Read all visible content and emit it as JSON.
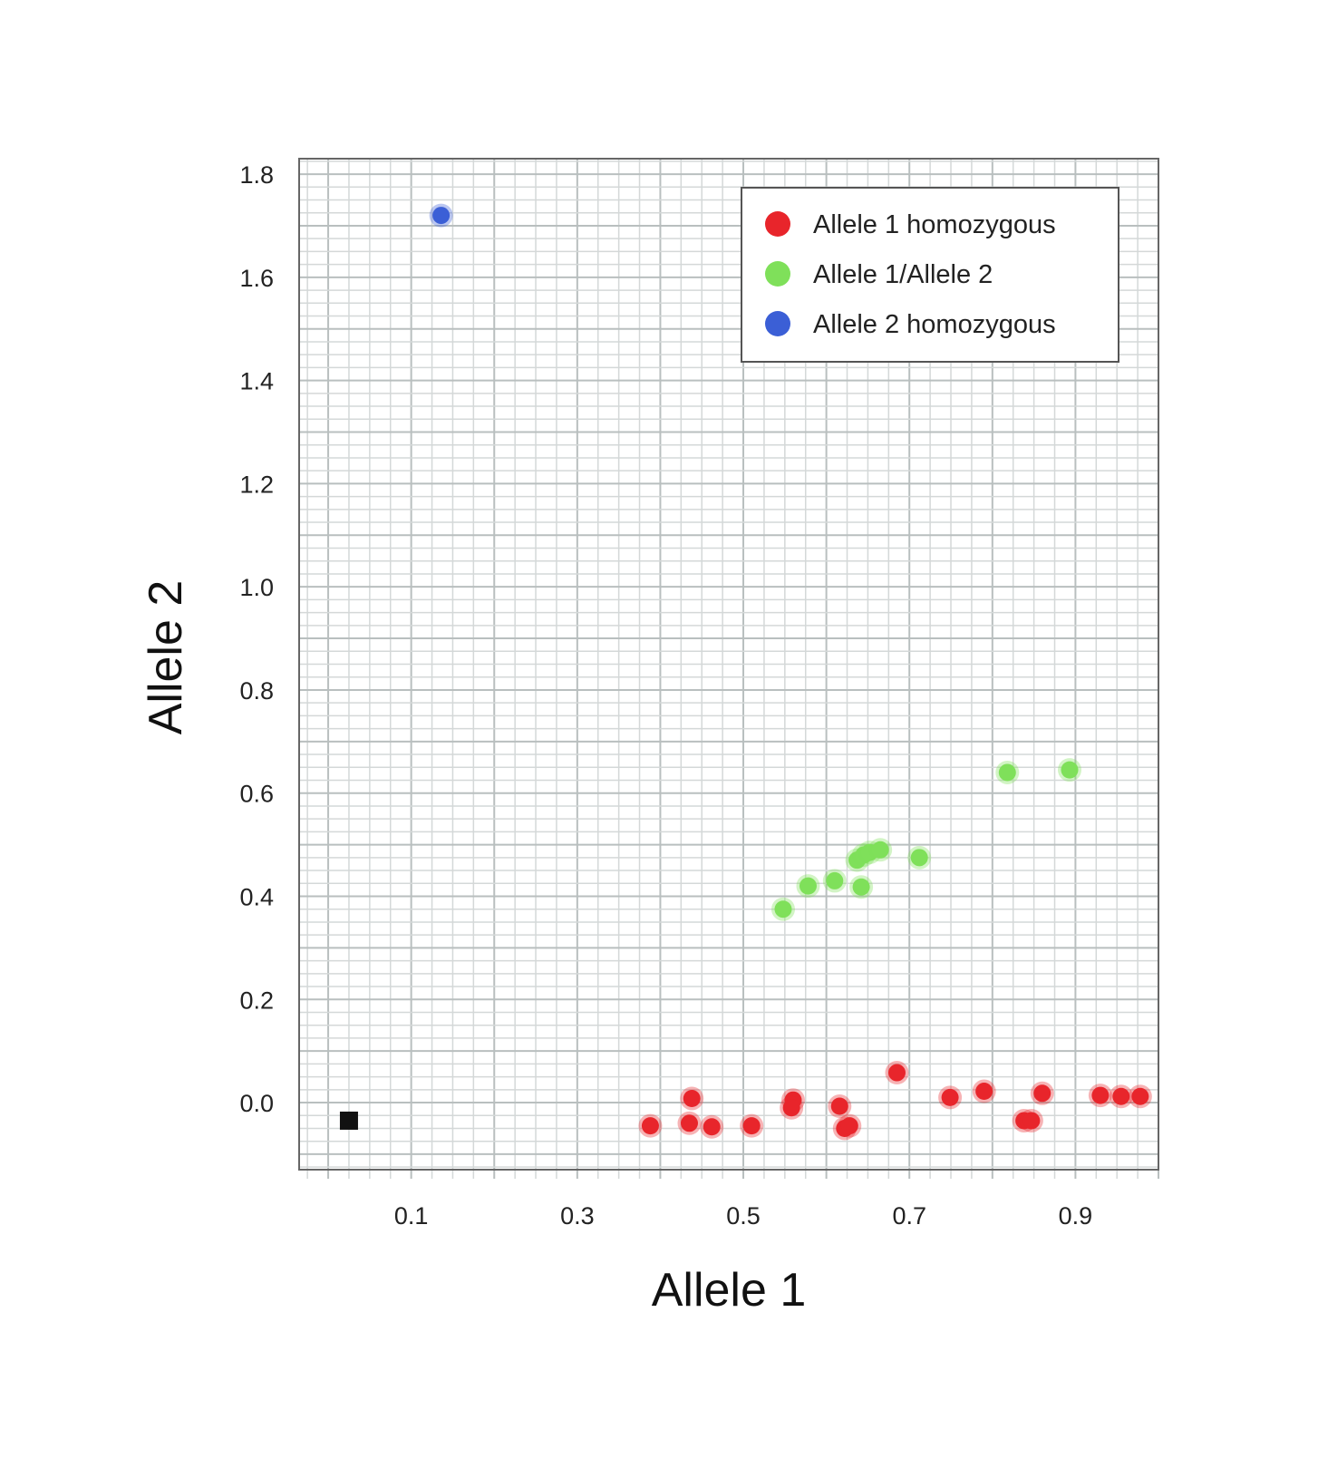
{
  "chart_data": {
    "type": "scatter",
    "xlabel": "Allele 1",
    "ylabel": "Allele 2",
    "xlim": [
      -0.035,
      1.0
    ],
    "ylim": [
      -0.13,
      1.83
    ],
    "x_ticks": [
      "0.1",
      "0.3",
      "0.5",
      "0.7",
      "0.9"
    ],
    "x_tick_values": [
      0.1,
      0.3,
      0.5,
      0.7,
      0.9
    ],
    "y_ticks": [
      "0.0",
      "0.2",
      "0.4",
      "0.6",
      "0.8",
      "1.0",
      "1.2",
      "1.4",
      "1.6",
      "1.8"
    ],
    "y_tick_values": [
      0.0,
      0.2,
      0.4,
      0.6,
      0.8,
      1.0,
      1.2,
      1.4,
      1.6,
      1.8
    ],
    "grid": true,
    "legend_position": "top-right",
    "series": [
      {
        "name": "Allele 1 homozygous",
        "color": "#e8252b",
        "marker": "circle",
        "points": [
          [
            0.388,
            -0.045
          ],
          [
            0.438,
            0.008
          ],
          [
            0.435,
            -0.04
          ],
          [
            0.462,
            -0.047
          ],
          [
            0.51,
            -0.045
          ],
          [
            0.56,
            0.005
          ],
          [
            0.558,
            -0.01
          ],
          [
            0.616,
            -0.007
          ],
          [
            0.622,
            -0.05
          ],
          [
            0.628,
            -0.045
          ],
          [
            0.685,
            0.058
          ],
          [
            0.749,
            0.01
          ],
          [
            0.79,
            0.022
          ],
          [
            0.838,
            -0.035
          ],
          [
            0.847,
            -0.035
          ],
          [
            0.86,
            0.018
          ],
          [
            0.93,
            0.014
          ],
          [
            0.955,
            0.012
          ],
          [
            0.978,
            0.012
          ]
        ]
      },
      {
        "name": "Allele 1/Allele 2",
        "color": "#7fe05a",
        "marker": "circle",
        "points": [
          [
            0.548,
            0.375
          ],
          [
            0.578,
            0.42
          ],
          [
            0.61,
            0.43
          ],
          [
            0.642,
            0.418
          ],
          [
            0.637,
            0.47
          ],
          [
            0.645,
            0.48
          ],
          [
            0.652,
            0.485
          ],
          [
            0.665,
            0.49
          ],
          [
            0.712,
            0.475
          ],
          [
            0.818,
            0.64
          ],
          [
            0.893,
            0.645
          ]
        ]
      },
      {
        "name": "Allele 2 homozygous",
        "color": "#3b5fd6",
        "marker": "circle",
        "points": [
          [
            0.136,
            1.72
          ]
        ]
      },
      {
        "color": "#111111",
        "marker": "square",
        "points": [
          [
            0.025,
            -0.035
          ]
        ]
      }
    ]
  }
}
